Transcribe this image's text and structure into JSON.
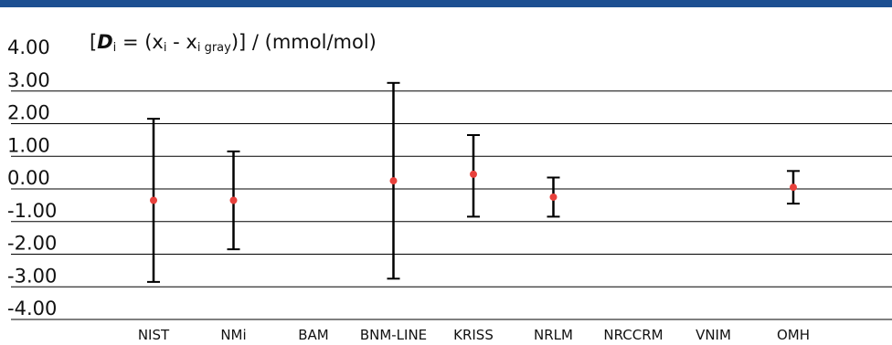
{
  "colors": {
    "top_bar": "#1d4f91",
    "gridline": "#000000",
    "error_bar": "#000000",
    "point": "#e8413c"
  },
  "chart_data": {
    "type": "scatter",
    "ylabel_parts": {
      "open": "[",
      "symbol": "D",
      "symbol_sub": "i",
      "mid": " = (x",
      "x_sub1": "i",
      "minus": " - x",
      "x_sub2": "i gray",
      "close": ")] / (mmol/mol)"
    },
    "ylim": [
      -4.0,
      4.0
    ],
    "yticks": [
      "4.00",
      "3.00",
      "2.00",
      "1.00",
      "0.00",
      "-1.00",
      "-2.00",
      "-3.00",
      "-4.00"
    ],
    "categories": [
      "NIST",
      "NMi",
      "BAM",
      "BNM-LINE",
      "KRISS",
      "NRLM",
      "NRCCRM",
      "VNIM",
      "OMH"
    ],
    "grid": true,
    "points": [
      {
        "label": "NIST",
        "value": -0.35,
        "lower": -2.85,
        "upper": 2.15
      },
      {
        "label": "NMi",
        "value": -0.35,
        "lower": -1.85,
        "upper": 1.15
      },
      {
        "label": "BAM",
        "value": null,
        "lower": null,
        "upper": null
      },
      {
        "label": "BNM-LINE",
        "value": 0.25,
        "lower": -2.75,
        "upper": 3.25
      },
      {
        "label": "KRISS",
        "value": 0.45,
        "lower": -0.85,
        "upper": 1.65
      },
      {
        "label": "NRLM",
        "value": -0.25,
        "lower": -0.85,
        "upper": 0.35
      },
      {
        "label": "NRCCRM",
        "value": null,
        "lower": null,
        "upper": null
      },
      {
        "label": "VNIM",
        "value": null,
        "lower": null,
        "upper": null
      },
      {
        "label": "OMH",
        "value": 0.05,
        "lower": -0.45,
        "upper": 0.55
      }
    ]
  }
}
